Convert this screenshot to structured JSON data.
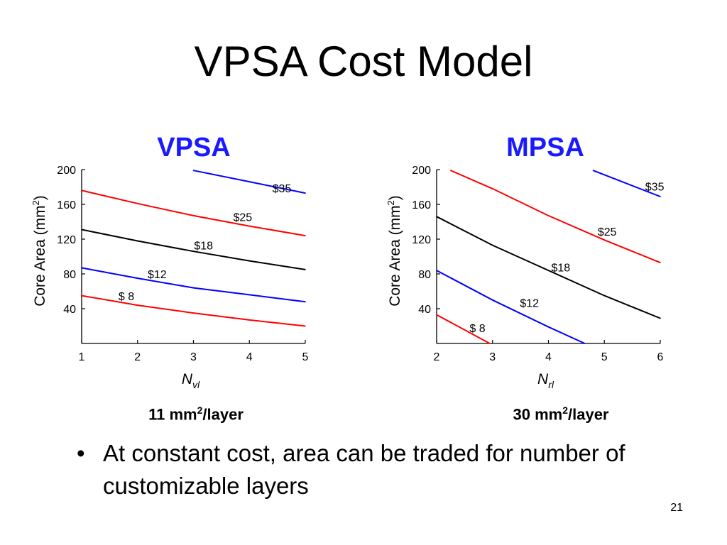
{
  "slide": {
    "title": "VPSA Cost Model",
    "bullet": "At constant cost, area can be traded for number of customizable layers",
    "page_number": "21"
  },
  "chart_data": [
    {
      "type": "line",
      "title": "VPSA",
      "title_color": "#1a1aff",
      "caption": {
        "prefix": "11 mm",
        "sup": "2",
        "suffix": "/layer"
      },
      "ylabel": {
        "text": "Core Area (mm",
        "sup": "2",
        "suffix": ")"
      },
      "xlabel": {
        "main": "N",
        "sub": "vl"
      },
      "xlim": [
        1,
        5
      ],
      "ylim": [
        0,
        200
      ],
      "xticks": [
        {
          "v": 1,
          "label": "1"
        },
        {
          "v": 2,
          "label": "2"
        },
        {
          "v": 3,
          "label": "3"
        },
        {
          "v": 4,
          "label": "4"
        },
        {
          "v": 5,
          "label": "5"
        }
      ],
      "yticks": [
        {
          "v": 40,
          "label": "40"
        },
        {
          "v": 80,
          "label": "80"
        },
        {
          "v": 120,
          "label": "120"
        },
        {
          "v": 160,
          "label": "160"
        },
        {
          "v": 200,
          "label": "200"
        }
      ],
      "grid": false,
      "series": [
        {
          "name": "$ 8",
          "color": "#ff0000",
          "x": [
            1,
            2,
            3,
            4,
            5
          ],
          "y": [
            55,
            44,
            35,
            27,
            20
          ],
          "label_at": [
            1.8,
            50
          ]
        },
        {
          "name": "$12",
          "color": "#0000ff",
          "x": [
            1,
            2,
            3,
            4,
            5
          ],
          "y": [
            87,
            75,
            64,
            56,
            48
          ],
          "label_at": [
            2.35,
            75
          ]
        },
        {
          "name": "$18",
          "color": "#000000",
          "x": [
            1,
            2,
            3,
            4,
            5
          ],
          "y": [
            131,
            118,
            106,
            95,
            85
          ],
          "label_at": [
            3.18,
            108
          ]
        },
        {
          "name": "$25",
          "color": "#ff0000",
          "x": [
            1,
            2,
            3,
            4,
            5
          ],
          "y": [
            176,
            161,
            147,
            135,
            124
          ],
          "label_at": [
            3.88,
            141
          ]
        },
        {
          "name": "$35",
          "color": "#0000ff",
          "x": [
            3,
            4,
            5
          ],
          "y": [
            199,
            186,
            173
          ],
          "label_at": [
            4.58,
            174
          ]
        }
      ]
    },
    {
      "type": "line",
      "title": "MPSA",
      "title_color": "#1a1aff",
      "caption": {
        "prefix": "30 mm",
        "sup": "2",
        "suffix": "/layer"
      },
      "ylabel": {
        "text": "Core Area (mm",
        "sup": "2",
        "suffix": ")"
      },
      "xlabel": {
        "main": "N",
        "sub": "rl"
      },
      "xlim": [
        2,
        6
      ],
      "ylim": [
        0,
        200
      ],
      "xticks": [
        {
          "v": 2,
          "label": "2"
        },
        {
          "v": 3,
          "label": "3"
        },
        {
          "v": 4,
          "label": "4"
        },
        {
          "v": 5,
          "label": "5"
        },
        {
          "v": 6,
          "label": "6"
        }
      ],
      "yticks": [
        {
          "v": 40,
          "label": "40"
        },
        {
          "v": 80,
          "label": "80"
        },
        {
          "v": 120,
          "label": "120"
        },
        {
          "v": 160,
          "label": "160"
        },
        {
          "v": 200,
          "label": "200"
        }
      ],
      "grid": false,
      "series": [
        {
          "name": "$ 8",
          "color": "#ff0000",
          "x": [
            2,
            2.95
          ],
          "y": [
            33,
            0
          ],
          "label_at": [
            2.73,
            13
          ]
        },
        {
          "name": "$12",
          "color": "#0000ff",
          "x": [
            2,
            3,
            4,
            4.65
          ],
          "y": [
            84,
            50,
            19,
            0
          ],
          "label_at": [
            3.66,
            42
          ]
        },
        {
          "name": "$18",
          "color": "#000000",
          "x": [
            2,
            3,
            4,
            5,
            6
          ],
          "y": [
            146,
            113,
            84,
            55,
            29
          ],
          "label_at": [
            4.22,
            83
          ]
        },
        {
          "name": "$25",
          "color": "#ff0000",
          "x": [
            2.25,
            3,
            4,
            5,
            6
          ],
          "y": [
            199,
            178,
            147,
            119,
            93
          ],
          "label_at": [
            5.05,
            124
          ]
        },
        {
          "name": "$35",
          "color": "#0000ff",
          "x": [
            4.8,
            6
          ],
          "y": [
            199,
            169
          ],
          "label_at": [
            5.9,
            176
          ]
        }
      ]
    }
  ]
}
